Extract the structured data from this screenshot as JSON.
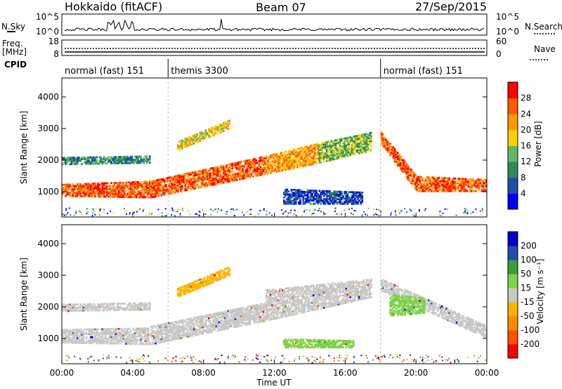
{
  "header": {
    "radar": "Hokkaido (fitACF)",
    "beam": "Beam 07",
    "date": "27/Sep/2015"
  },
  "noise": {
    "left_label": "N.Sky",
    "left_ticks": [
      "10^5",
      "10^0"
    ],
    "right_label": "N.Search",
    "right_ticks": [
      "10^5",
      "10^0"
    ]
  },
  "freq": {
    "left_label_1": "Freq.",
    "left_label_2": "[MHz]",
    "left_ticks": [
      "18",
      "8"
    ],
    "right_label": "Nave",
    "right_ticks": [
      "60",
      "0"
    ]
  },
  "cpid": {
    "label": "CPID",
    "modes": [
      {
        "name": "normal (fast) 151",
        "start_h": 0
      },
      {
        "name": "themis 3300",
        "start_h": 6
      },
      {
        "name": "normal (fast) 151",
        "start_h": 18
      }
    ]
  },
  "colors": {
    "power": [
      "#0000ff",
      "#1f4fa8",
      "#2e8b57",
      "#5fb85f",
      "#ffd000",
      "#ff9900",
      "#ff5a00",
      "#ff0000"
    ],
    "velocity": [
      "#ff0000",
      "#ff5000",
      "#ff8c00",
      "#ffb300",
      "#c8c8c8",
      "#7fd34a",
      "#3a9e3a",
      "#1f4fa8",
      "#0000cc"
    ]
  },
  "chart_data": [
    {
      "type": "heatmap",
      "name": "power",
      "ylabel": "Slant Range [km]",
      "yticks": [
        1000,
        2000,
        3000,
        4000
      ],
      "ylim": [
        200,
        4600
      ],
      "xlim": [
        0,
        24
      ],
      "colorbar_label": "Power [dB]",
      "colorbar_ticks": [
        "4",
        "8",
        "12",
        "16",
        "20",
        "24",
        "28"
      ],
      "bands": [
        {
          "t0": 0,
          "t1": 5,
          "r0": [
            850,
            800
          ],
          "r1": [
            1250,
            1350
          ],
          "level": 7
        },
        {
          "t0": 5,
          "t1": 11.5,
          "r0": [
            800,
            1550
          ],
          "r1": [
            1350,
            2150
          ],
          "level": 7
        },
        {
          "t0": 11.5,
          "t1": 14.5,
          "r0": [
            1550,
            1900
          ],
          "r1": [
            2150,
            2550
          ],
          "level": 6
        },
        {
          "t0": 14.5,
          "t1": 17.5,
          "r0": [
            1900,
            2300
          ],
          "r1": [
            2550,
            2900
          ],
          "level": 4
        },
        {
          "t0": 18,
          "t1": 20,
          "r0": [
            2500,
            1000
          ],
          "r1": [
            2900,
            1500
          ],
          "level": 7
        },
        {
          "t0": 20,
          "t1": 24,
          "r0": [
            1000,
            1000
          ],
          "r1": [
            1500,
            1400
          ],
          "level": 7
        },
        {
          "t0": 0,
          "t1": 5,
          "r0": [
            1850,
            1900
          ],
          "r1": [
            2100,
            2150
          ],
          "level": 3
        },
        {
          "t0": 6.5,
          "t1": 9.5,
          "r0": [
            2300,
            3000
          ],
          "r1": [
            2600,
            3300
          ],
          "level": 5
        },
        {
          "t0": 12.5,
          "t1": 17,
          "r0": [
            600,
            600
          ],
          "r1": [
            1100,
            1000
          ],
          "level": 2
        }
      ]
    },
    {
      "type": "heatmap",
      "name": "velocity",
      "ylabel": "Slant Range [km]",
      "yticks": [
        1000,
        2000,
        3000,
        4000
      ],
      "ylim": [
        200,
        4600
      ],
      "xlim": [
        0,
        24
      ],
      "colorbar_label": "Velocity [m s⁻¹]",
      "colorbar_ticks": [
        "200",
        "100",
        "50",
        "15",
        "-15",
        "-50",
        "-100",
        "-200"
      ],
      "bands": [
        {
          "t0": 0,
          "t1": 5,
          "r0": [
            850,
            800
          ],
          "r1": [
            1300,
            1350
          ],
          "level": 4
        },
        {
          "t0": 5,
          "t1": 11.5,
          "r0": [
            800,
            1550
          ],
          "r1": [
            1400,
            2150
          ],
          "level": 4
        },
        {
          "t0": 11.5,
          "t1": 17.5,
          "r0": [
            1550,
            2300
          ],
          "r1": [
            2550,
            2900
          ],
          "level": 4
        },
        {
          "t0": 18,
          "t1": 24,
          "r0": [
            2500,
            1000
          ],
          "r1": [
            2900,
            1400
          ],
          "level": 4
        },
        {
          "t0": 0,
          "t1": 5,
          "r0": [
            1850,
            1900
          ],
          "r1": [
            2100,
            2150
          ],
          "level": 4
        },
        {
          "t0": 6.5,
          "t1": 9.5,
          "r0": [
            2300,
            3000
          ],
          "r1": [
            2600,
            3300
          ],
          "level": 3
        },
        {
          "t0": 12.5,
          "t1": 16.5,
          "r0": [
            700,
            700
          ],
          "r1": [
            1000,
            950
          ],
          "level": 5
        },
        {
          "t0": 18.5,
          "t1": 20.5,
          "r0": [
            1700,
            1800
          ],
          "r1": [
            2400,
            2300
          ],
          "level": 5
        }
      ]
    }
  ],
  "x_axis": {
    "label": "Time UT",
    "ticks": [
      "00:00",
      "04:00",
      "08:00",
      "12:00",
      "16:00",
      "20:00",
      "00:00"
    ]
  }
}
